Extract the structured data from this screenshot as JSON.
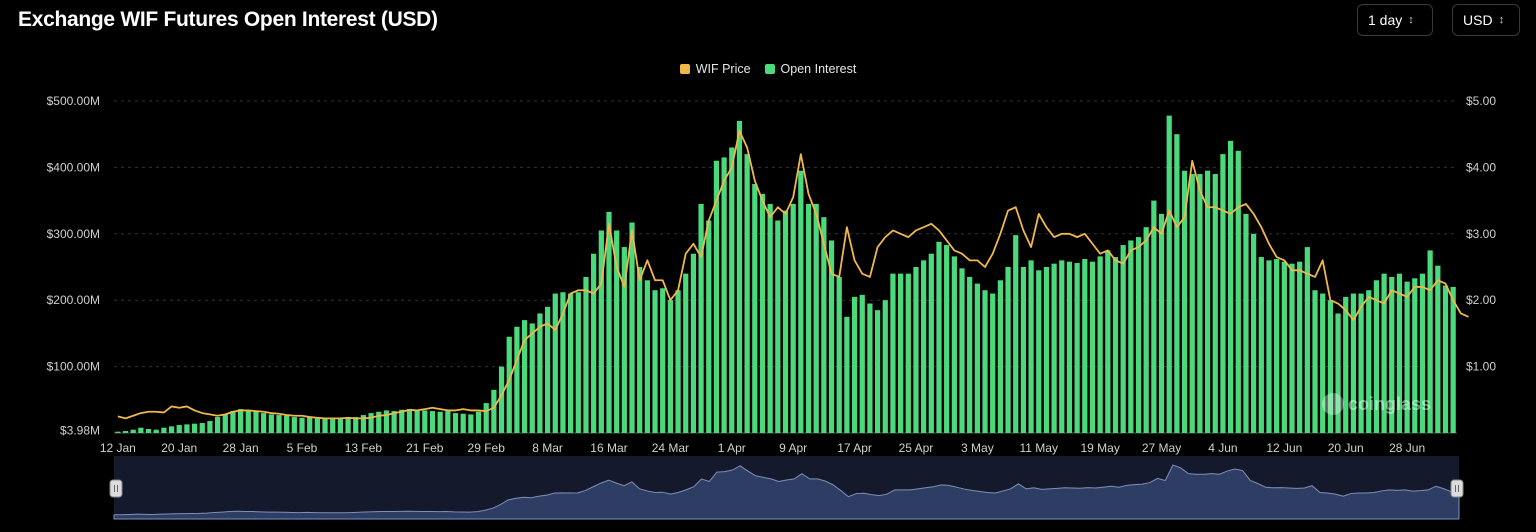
{
  "header": {
    "title": "Exchange WIF Futures Open Interest (USD)",
    "interval": "1 day",
    "currency": "USD"
  },
  "watermark": "coinglass",
  "colors": {
    "bar": "#4cd97b",
    "line": "#f0b84a",
    "navigator_fill": "#2e3d63",
    "navigator_line": "#7f8fba",
    "grid": "#333333"
  },
  "chart_data": {
    "type": "bar",
    "title": "Exchange WIF Futures Open Interest (USD)",
    "legend": [
      "WIF Price",
      "Open Interest"
    ],
    "legend_position": "top-center",
    "grid": true,
    "x_labels": [
      "12 Jan",
      "20 Jan",
      "28 Jan",
      "5 Feb",
      "13 Feb",
      "21 Feb",
      "29 Feb",
      "8 Mar",
      "16 Mar",
      "24 Mar",
      "1 Apr",
      "9 Apr",
      "17 Apr",
      "25 Apr",
      "3 May",
      "11 May",
      "19 May",
      "27 May",
      "4 Jun",
      "12 Jun",
      "20 Jun",
      "28 Jun"
    ],
    "x_label_stride": 8,
    "y_left_ticks": [
      "$3.98M",
      "$100.00M",
      "$200.00M",
      "$300.00M",
      "$400.00M",
      "$500.00M"
    ],
    "y_left_values": [
      3.98,
      100,
      200,
      300,
      400,
      500
    ],
    "y_left_range": [
      0,
      500
    ],
    "y_right_ticks": [
      "$1.00",
      "$2.00",
      "$3.00",
      "$4.00",
      "$5.00"
    ],
    "y_right_values": [
      1,
      2,
      3,
      4,
      5
    ],
    "y_right_range": [
      0,
      5
    ],
    "series": [
      {
        "name": "Open Interest",
        "type": "bar",
        "axis": "left",
        "unit": "USD millions",
        "values": [
          2,
          3,
          5,
          8,
          6,
          5,
          8,
          10,
          12,
          13,
          14,
          15,
          18,
          24,
          28,
          33,
          36,
          34,
          33,
          30,
          28,
          27,
          26,
          24,
          23,
          25,
          23,
          22,
          21,
          22,
          22,
          24,
          27,
          30,
          32,
          34,
          33,
          35,
          36,
          35,
          34,
          33,
          32,
          33,
          30,
          29,
          28,
          32,
          45,
          65,
          100,
          145,
          160,
          170,
          165,
          180,
          190,
          210,
          212,
          210,
          212,
          235,
          270,
          305,
          333,
          305,
          280,
          317,
          250,
          230,
          215,
          218,
          200,
          215,
          240,
          270,
          345,
          320,
          410,
          415,
          430,
          470,
          420,
          375,
          360,
          345,
          320,
          335,
          345,
          395,
          345,
          345,
          325,
          290,
          235,
          175,
          205,
          208,
          195,
          185,
          200,
          240,
          240,
          240,
          250,
          260,
          270,
          288,
          283,
          266,
          248,
          235,
          225,
          215,
          210,
          230,
          250,
          298,
          250,
          260,
          245,
          250,
          255,
          260,
          258,
          256,
          262,
          258,
          266,
          275,
          265,
          283,
          290,
          295,
          310,
          350,
          330,
          478,
          450,
          395,
          390,
          390,
          395,
          390,
          420,
          440,
          425,
          330,
          300,
          265,
          260,
          262,
          258,
          255,
          258,
          280,
          215,
          210,
          200,
          180,
          205,
          210,
          210,
          215,
          230,
          240,
          235,
          240,
          228,
          233,
          240,
          275,
          252,
          222,
          220
        ]
      },
      {
        "name": "WIF Price",
        "type": "line",
        "axis": "right",
        "unit": "USD",
        "values": [
          0.25,
          0.22,
          0.26,
          0.3,
          0.32,
          0.32,
          0.31,
          0.4,
          0.38,
          0.4,
          0.34,
          0.3,
          0.28,
          0.26,
          0.28,
          0.32,
          0.34,
          0.34,
          0.33,
          0.32,
          0.3,
          0.29,
          0.27,
          0.26,
          0.26,
          0.24,
          0.23,
          0.22,
          0.22,
          0.22,
          0.23,
          0.22,
          0.22,
          0.23,
          0.26,
          0.27,
          0.3,
          0.32,
          0.35,
          0.34,
          0.36,
          0.38,
          0.36,
          0.34,
          0.34,
          0.36,
          0.34,
          0.34,
          0.33,
          0.38,
          0.57,
          0.8,
          1.1,
          1.4,
          1.5,
          1.6,
          1.65,
          1.55,
          1.8,
          2.1,
          2.15,
          2.15,
          2.1,
          2.25,
          3.15,
          2.5,
          2.2,
          3.05,
          2.3,
          2.6,
          2.3,
          2.3,
          2.0,
          2.15,
          2.7,
          2.85,
          2.65,
          3.2,
          3.5,
          3.8,
          4.0,
          4.55,
          4.3,
          3.8,
          3.5,
          3.25,
          3.4,
          3.3,
          3.55,
          4.2,
          3.6,
          3.3,
          2.85,
          2.4,
          2.35,
          3.1,
          2.6,
          2.4,
          2.35,
          2.8,
          2.95,
          3.05,
          3.0,
          2.95,
          3.05,
          3.1,
          3.15,
          3.05,
          2.9,
          2.75,
          2.7,
          2.6,
          2.6,
          2.5,
          2.7,
          3.0,
          3.35,
          3.4,
          3.05,
          2.8,
          3.3,
          3.1,
          2.95,
          3.0,
          3.0,
          2.95,
          3.0,
          2.85,
          2.7,
          2.75,
          2.6,
          2.55,
          2.75,
          2.8,
          2.9,
          3.1,
          3.0,
          3.35,
          3.1,
          3.25,
          4.1,
          3.65,
          3.4,
          3.4,
          3.35,
          3.3,
          3.4,
          3.45,
          3.3,
          3.1,
          2.85,
          2.65,
          2.6,
          2.45,
          2.45,
          2.4,
          2.35,
          2.6,
          2.0,
          1.95,
          1.85,
          1.7,
          1.9,
          2.05,
          2.0,
          1.95,
          2.15,
          2.1,
          2.05,
          2.2,
          2.2,
          2.15,
          2.3,
          2.25,
          2.0,
          1.8,
          1.75
        ]
      }
    ]
  }
}
